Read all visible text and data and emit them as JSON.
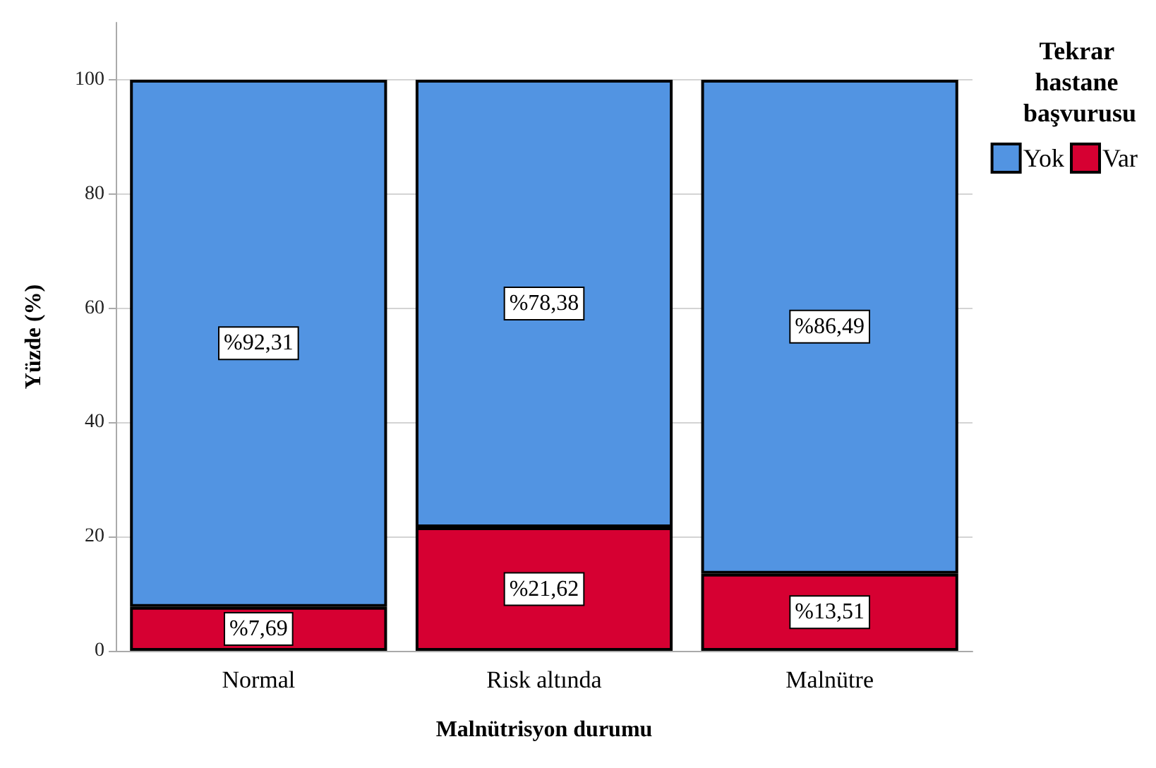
{
  "chart_data": {
    "type": "bar",
    "stacked": true,
    "xlabel": "Malnütrisyon durumu",
    "ylabel": "Yüzde (%)",
    "legend_title": "Tekrar hastane başvurusu",
    "categories": [
      "Normal",
      "Risk altında",
      "Malnütre"
    ],
    "series": [
      {
        "name": "Var",
        "color": "#d60032",
        "values": [
          7.69,
          21.62,
          13.51
        ],
        "value_labels": [
          "%7,69",
          "%21,62",
          "%13,51"
        ]
      },
      {
        "name": "Yok",
        "color": "#5294e2",
        "values": [
          92.31,
          78.38,
          86.49
        ],
        "value_labels": [
          "%92,31",
          "%78,38",
          "%86,49"
        ]
      }
    ],
    "ylim": [
      0,
      110
    ],
    "yticks": [
      0,
      20,
      40,
      60,
      80,
      100
    ],
    "grid": "y",
    "legend": "top right"
  }
}
